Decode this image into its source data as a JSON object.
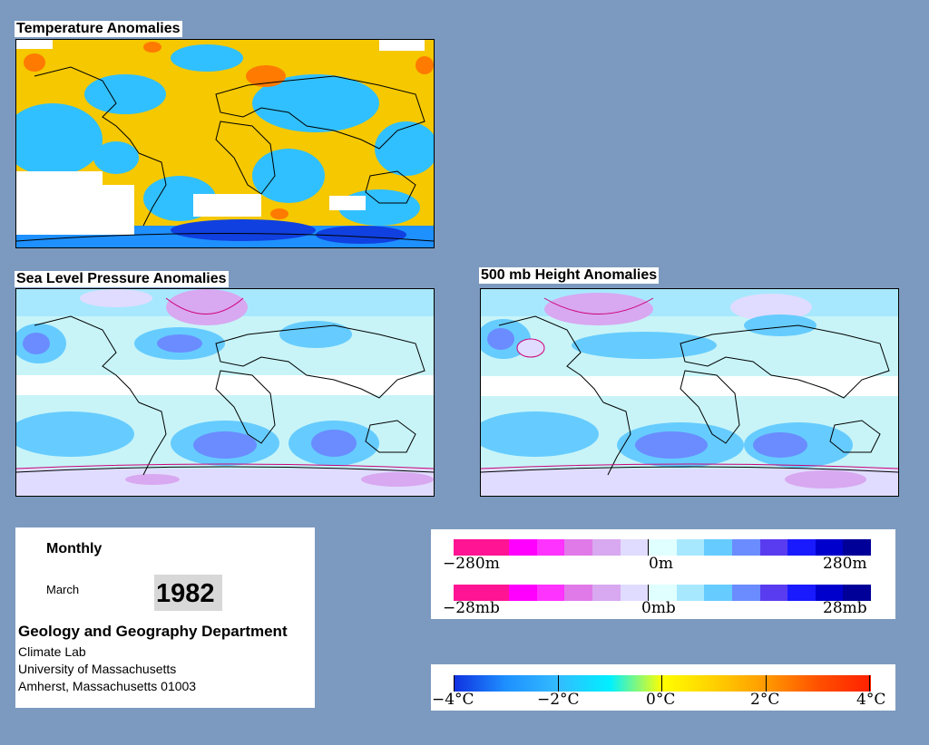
{
  "panels": {
    "temperature": {
      "title": "Temperature Anomalies"
    },
    "slp": {
      "title": "Sea Level Pressure Anomalies"
    },
    "height500": {
      "title": "500 mb Height Anomalies"
    }
  },
  "info": {
    "period": "Monthly",
    "month": "March",
    "year": "1982",
    "department": "Geology and Geography Department",
    "lab": "Climate Lab",
    "university": "University of Massachusetts",
    "address": "Amherst, Massachusetts 01003"
  },
  "height_legend": {
    "ticks": [
      "−280m",
      "0m",
      "280m"
    ],
    "colors": [
      "#ff1493",
      "#ff1493",
      "#ff00ff",
      "#ff33ff",
      "#e07ae8",
      "#d8a8f0",
      "#e0dcff",
      "#e0ffff",
      "#a8e8ff",
      "#66ccff",
      "#6a8cff",
      "#5a3cf0",
      "#1a1aff",
      "#0000cc",
      "#000099"
    ]
  },
  "slp_legend": {
    "ticks": [
      "−28mb",
      "0mb",
      "28mb"
    ],
    "colors": [
      "#ff1493",
      "#ff1493",
      "#ff00ff",
      "#ff33ff",
      "#e07ae8",
      "#d8a8f0",
      "#e0dcff",
      "#e0ffff",
      "#a8e8ff",
      "#66ccff",
      "#6a8cff",
      "#5a3cf0",
      "#1a1aff",
      "#0000cc",
      "#000099"
    ]
  },
  "temp_legend": {
    "ticks": [
      "−4°C",
      "−2°C",
      "0°C",
      "2°C",
      "4°C"
    ],
    "gradient": [
      "#1030e0",
      "#1e90ff",
      "#33bbff",
      "#00f0ff",
      "#ffff00",
      "#ffd000",
      "#ff9900",
      "#ff5000",
      "#ff2000"
    ]
  }
}
